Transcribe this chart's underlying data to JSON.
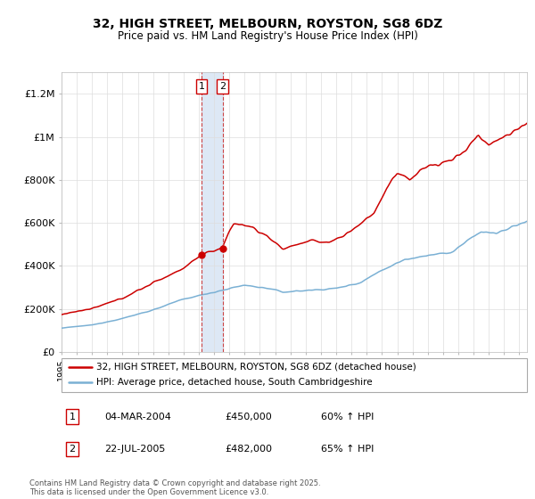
{
  "title": "32, HIGH STREET, MELBOURN, ROYSTON, SG8 6DZ",
  "subtitle": "Price paid vs. HM Land Registry's House Price Index (HPI)",
  "legend_line1": "32, HIGH STREET, MELBOURN, ROYSTON, SG8 6DZ (detached house)",
  "legend_line2": "HPI: Average price, detached house, South Cambridgeshire",
  "footer": "Contains HM Land Registry data © Crown copyright and database right 2025.\nThis data is licensed under the Open Government Licence v3.0.",
  "sale1_label": "1",
  "sale1_date": "04-MAR-2004",
  "sale1_price": "£450,000",
  "sale1_hpi": "60% ↑ HPI",
  "sale2_label": "2",
  "sale2_date": "22-JUL-2005",
  "sale2_price": "£482,000",
  "sale2_hpi": "65% ↑ HPI",
  "red_color": "#cc0000",
  "blue_color": "#7ab0d4",
  "vline_color": "#cc4444",
  "shade_color": "#dde8f5",
  "sale1_x": 2004.17,
  "sale2_x": 2005.55,
  "sale1_y": 450000,
  "sale2_y": 482000,
  "ylim_min": 0,
  "ylim_max": 1300000,
  "xlim_min": 1995,
  "xlim_max": 2025.5,
  "yticks": [
    0,
    200000,
    400000,
    600000,
    800000,
    1000000,
    1200000
  ],
  "ylabels": [
    "£0",
    "£200K",
    "£400K",
    "£600K",
    "£800K",
    "£1M",
    "£1.2M"
  ]
}
